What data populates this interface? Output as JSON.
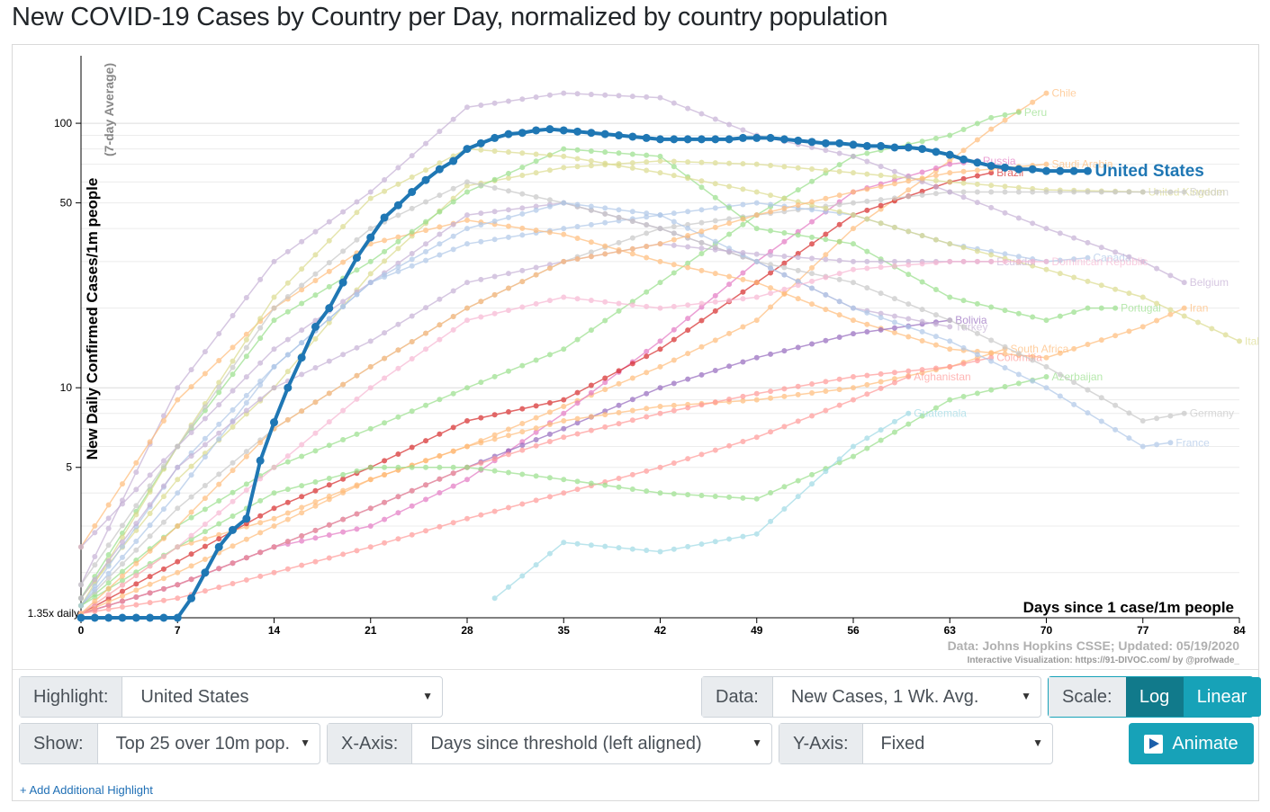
{
  "page": {
    "title": "New COVID-19 Cases by Country per Day, normalized by country population"
  },
  "colors": {
    "highlight": "#1f77b4",
    "accent_teal": "#17a2b8",
    "dark_teal": "#138496"
  },
  "chart_data": {
    "type": "line",
    "y_scale": "log",
    "ylabel": "New Daily Confirmed Cases/1m people",
    "ylabel_sub": "(7-day Average)",
    "xlabel": "Days since 1 case/1m people",
    "xlim": [
      0,
      84
    ],
    "ylim": [
      1.35,
      180
    ],
    "x_ticks": [
      0,
      7,
      14,
      21,
      28,
      35,
      42,
      49,
      56,
      63,
      70,
      77,
      84
    ],
    "y_ticks": [
      5,
      10,
      50,
      100
    ],
    "y_tick_labels": [
      "5",
      "10",
      "50",
      "100"
    ],
    "baseline_label": "1.35x daily",
    "source": "Data: Johns Hopkins CSSE; Updated: 05/19/2020",
    "credit": "Interactive Visualization: https://91-DIVOC.com/ by @profwade_",
    "highlight": {
      "name": "United States",
      "color": "#1f77b4",
      "x": [
        0,
        1,
        2,
        3,
        4,
        5,
        6,
        7,
        8,
        9,
        10,
        11,
        12,
        13,
        14,
        15,
        16,
        17,
        18,
        19,
        20,
        21,
        22,
        23,
        24,
        25,
        26,
        27,
        28,
        29,
        30,
        31,
        32,
        33,
        34,
        35,
        36,
        37,
        38,
        39,
        40,
        41,
        42,
        43,
        44,
        45,
        46,
        47,
        48,
        49,
        50,
        51,
        52,
        53,
        54,
        55,
        56,
        57,
        58,
        59,
        60,
        61,
        62,
        63,
        64,
        65,
        66,
        67,
        68,
        69,
        70,
        71,
        72,
        73
      ],
      "y": [
        1.35,
        1.35,
        1.35,
        1.35,
        1.35,
        1.35,
        1.35,
        1.35,
        1.6,
        2.0,
        2.5,
        2.9,
        3.2,
        5.3,
        7.4,
        10,
        13,
        17,
        20,
        25,
        31,
        37,
        44,
        49,
        55,
        61,
        67,
        72,
        80,
        84,
        88,
        91,
        92,
        94,
        95,
        94,
        93,
        92,
        91,
        90,
        89,
        88,
        87,
        87,
        87,
        87,
        87,
        87,
        88,
        88,
        88,
        87,
        86,
        85,
        84,
        84,
        83,
        82,
        82,
        81,
        81,
        80,
        78,
        76,
        73,
        71,
        69,
        68,
        67,
        67,
        66,
        66,
        66,
        66
      ]
    },
    "series": [
      {
        "name": "Chile",
        "color": "#ffbb78",
        "x": [
          0,
          7,
          14,
          21,
          28,
          35,
          42,
          49,
          56,
          63,
          66,
          69,
          70
        ],
        "y": [
          1.4,
          2.5,
          3.2,
          4.5,
          6.0,
          8.5,
          12,
          18,
          40,
          72,
          95,
          120,
          130
        ]
      },
      {
        "name": "Peru",
        "color": "#98df8a",
        "x": [
          0,
          7,
          14,
          21,
          28,
          35,
          42,
          49,
          56,
          63,
          66,
          68
        ],
        "y": [
          1.5,
          3.0,
          5.0,
          7.0,
          10,
          14,
          25,
          45,
          75,
          90,
          105,
          110
        ]
      },
      {
        "name": "Russia",
        "color": "#e377c2",
        "x": [
          0,
          7,
          14,
          21,
          28,
          35,
          42,
          49,
          56,
          63,
          65
        ],
        "y": [
          1.4,
          1.8,
          2.5,
          3.0,
          4.5,
          8,
          15,
          30,
          55,
          70,
          72
        ]
      },
      {
        "name": "Brazil",
        "color": "#d62728",
        "x": [
          0,
          7,
          14,
          21,
          28,
          35,
          42,
          49,
          56,
          63,
          66
        ],
        "y": [
          1.4,
          2.2,
          3.5,
          5.0,
          7.5,
          9.0,
          14,
          25,
          45,
          60,
          65
        ]
      },
      {
        "name": "United Kingdom",
        "color": "#dbdb8d",
        "x": [
          0,
          7,
          14,
          21,
          28,
          35,
          42,
          49,
          56,
          63,
          70,
          77
        ],
        "y": [
          1.6,
          4.5,
          10,
          27,
          58,
          68,
          72,
          70,
          65,
          60,
          56,
          55
        ]
      },
      {
        "name": "Sweden",
        "color": "#c7c7c7",
        "x": [
          0,
          7,
          14,
          21,
          28,
          35,
          42,
          49,
          56,
          63,
          70,
          77,
          80
        ],
        "y": [
          1.5,
          3.5,
          7,
          12,
          20,
          30,
          40,
          45,
          50,
          55,
          55,
          55,
          55
        ]
      },
      {
        "name": "Canada",
        "color": "#aec7e8",
        "x": [
          0,
          7,
          14,
          21,
          28,
          35,
          42,
          49,
          56,
          63,
          70,
          73
        ],
        "y": [
          1.5,
          4.0,
          12,
          25,
          35,
          40,
          45,
          50,
          45,
          35,
          30,
          31
        ]
      },
      {
        "name": "Belgium",
        "color": "#c5b0d5",
        "x": [
          0,
          7,
          14,
          21,
          28,
          35,
          42,
          49,
          56,
          63,
          70,
          77,
          80
        ],
        "y": [
          1.8,
          10,
          30,
          55,
          115,
          130,
          125,
          90,
          75,
          55,
          40,
          30,
          25
        ]
      },
      {
        "name": "Iran",
        "color": "#ffbb78",
        "x": [
          0,
          7,
          14,
          21,
          28,
          35,
          42,
          49,
          56,
          63,
          70,
          77,
          80
        ],
        "y": [
          2.5,
          9,
          20,
          35,
          43,
          38,
          30,
          25,
          18,
          14,
          13,
          17,
          20
        ]
      },
      {
        "name": "Portugal",
        "color": "#98df8a",
        "x": [
          0,
          7,
          14,
          21,
          28,
          35,
          42,
          49,
          56,
          63,
          70,
          73,
          75
        ],
        "y": [
          1.6,
          6,
          18,
          30,
          55,
          80,
          75,
          40,
          35,
          22,
          18,
          20,
          20
        ]
      },
      {
        "name": "Italy",
        "color": "#dbdb8d",
        "x": [
          0,
          7,
          14,
          21,
          28,
          35,
          42,
          49,
          56,
          63,
          70,
          77,
          84
        ],
        "y": [
          1.5,
          6,
          22,
          52,
          80,
          75,
          65,
          55,
          45,
          35,
          28,
          22,
          15
        ]
      },
      {
        "name": "Bolivia",
        "color": "#9467bd",
        "x": [
          0,
          7,
          14,
          21,
          28,
          35,
          42,
          49,
          56,
          63
        ],
        "y": [
          1.4,
          1.8,
          2.5,
          3.5,
          5.0,
          7.0,
          10,
          13,
          16,
          18
        ]
      },
      {
        "name": "Turkey",
        "color": "#c5b0d5",
        "x": [
          0,
          7,
          14,
          21,
          28,
          35,
          42,
          49,
          56,
          63
        ],
        "y": [
          2.5,
          6,
          14,
          25,
          45,
          50,
          40,
          30,
          20,
          17
        ]
      },
      {
        "name": "South Africa",
        "color": "#ffbb78",
        "x": [
          0,
          7,
          14,
          21,
          28,
          35,
          42,
          49,
          56,
          63,
          67
        ],
        "y": [
          1.4,
          2.0,
          3.0,
          4.5,
          6.0,
          7.5,
          8.5,
          9.0,
          10,
          12,
          14
        ]
      },
      {
        "name": "Colombia",
        "color": "#ff9896",
        "x": [
          0,
          7,
          14,
          21,
          28,
          35,
          42,
          49,
          56,
          63,
          66
        ],
        "y": [
          1.4,
          1.8,
          2.5,
          3.5,
          5.0,
          6.5,
          8.0,
          9.5,
          11,
          12,
          13
        ]
      },
      {
        "name": "Afghanistan",
        "color": "#ff9896",
        "x": [
          0,
          7,
          14,
          21,
          28,
          35,
          42,
          49,
          56,
          60
        ],
        "y": [
          1.4,
          1.6,
          2.0,
          2.5,
          3.2,
          4.0,
          5.0,
          6.5,
          9.0,
          11
        ]
      },
      {
        "name": "Azerbaijan",
        "color": "#98df8a",
        "x": [
          0,
          7,
          14,
          21,
          28,
          35,
          42,
          49,
          56,
          63,
          70
        ],
        "y": [
          1.5,
          2.5,
          4.0,
          5.0,
          5.0,
          4.5,
          4.0,
          3.8,
          5.5,
          9,
          11
        ]
      },
      {
        "name": "Guatemala",
        "color": "#9edae5",
        "x": [
          30,
          35,
          42,
          49,
          56,
          60
        ],
        "y": [
          1.6,
          2.6,
          2.4,
          2.8,
          6,
          8
        ]
      },
      {
        "name": "Germany",
        "color": "#c7c7c7",
        "x": [
          0,
          7,
          14,
          21,
          28,
          35,
          42,
          49,
          56,
          63,
          70,
          77,
          80
        ],
        "y": [
          1.8,
          6,
          20,
          40,
          60,
          50,
          40,
          30,
          25,
          18,
          12,
          7.5,
          8
        ]
      },
      {
        "name": "France",
        "color": "#aec7e8",
        "x": [
          0,
          7,
          14,
          21,
          28,
          35,
          42,
          49,
          56,
          63,
          70,
          77,
          79
        ],
        "y": [
          1.5,
          5,
          12,
          25,
          40,
          50,
          45,
          30,
          20,
          15,
          10,
          6.0,
          6.2
        ]
      },
      {
        "name": "Ecuador",
        "color": "#c5b0d5",
        "x": [
          0,
          7,
          14,
          21,
          28,
          35,
          42,
          49,
          56,
          63,
          66
        ],
        "y": [
          1.6,
          5,
          10,
          15,
          25,
          30,
          35,
          32,
          30,
          30,
          30
        ]
      },
      {
        "name": "Dominican Republic",
        "color": "#f7b6d2",
        "x": [
          0,
          7,
          14,
          21,
          28,
          35,
          42,
          49,
          56,
          63,
          70
        ],
        "y": [
          1.4,
          2.5,
          5,
          10,
          18,
          22,
          20,
          22,
          28,
          30,
          30
        ]
      },
      {
        "name": "Saudi Arabia",
        "color": "#ffbb78",
        "x": [
          0,
          7,
          14,
          21,
          28,
          35,
          42,
          49,
          56,
          63,
          70
        ],
        "y": [
          1.4,
          3,
          7,
          12,
          20,
          30,
          35,
          45,
          55,
          65,
          70
        ]
      }
    ],
    "labels_ordered": [
      "Chile",
      "Peru",
      "Russia",
      "Brazil",
      "Saudi Arabia",
      "United Kingdom",
      "Sweden",
      "Dominican Republic",
      "Ecuador",
      "Canada",
      "Belgium",
      "Iran",
      "Portugal",
      "Italy",
      "Bolivia",
      "Turkey",
      "South Africa",
      "Colombia",
      "Afghanistan",
      "Azerbaijan",
      "Guatemala",
      "Germany",
      "France"
    ]
  },
  "controls": {
    "highlight": {
      "label": "Highlight:",
      "value": "United States"
    },
    "data": {
      "label": "Data:",
      "value": "New Cases, 1 Wk. Avg."
    },
    "scale": {
      "label": "Scale:",
      "options": [
        "Log",
        "Linear"
      ],
      "selected": "Log"
    },
    "show": {
      "label": "Show:",
      "value": "Top 25 over 10m pop."
    },
    "x_axis": {
      "label": "X-Axis:",
      "value": "Days since threshold (left aligned)"
    },
    "y_axis": {
      "label": "Y-Axis:",
      "value": "Fixed"
    },
    "animate_label": "Animate",
    "add_highlight_link": "+ Add Additional Highlight"
  }
}
